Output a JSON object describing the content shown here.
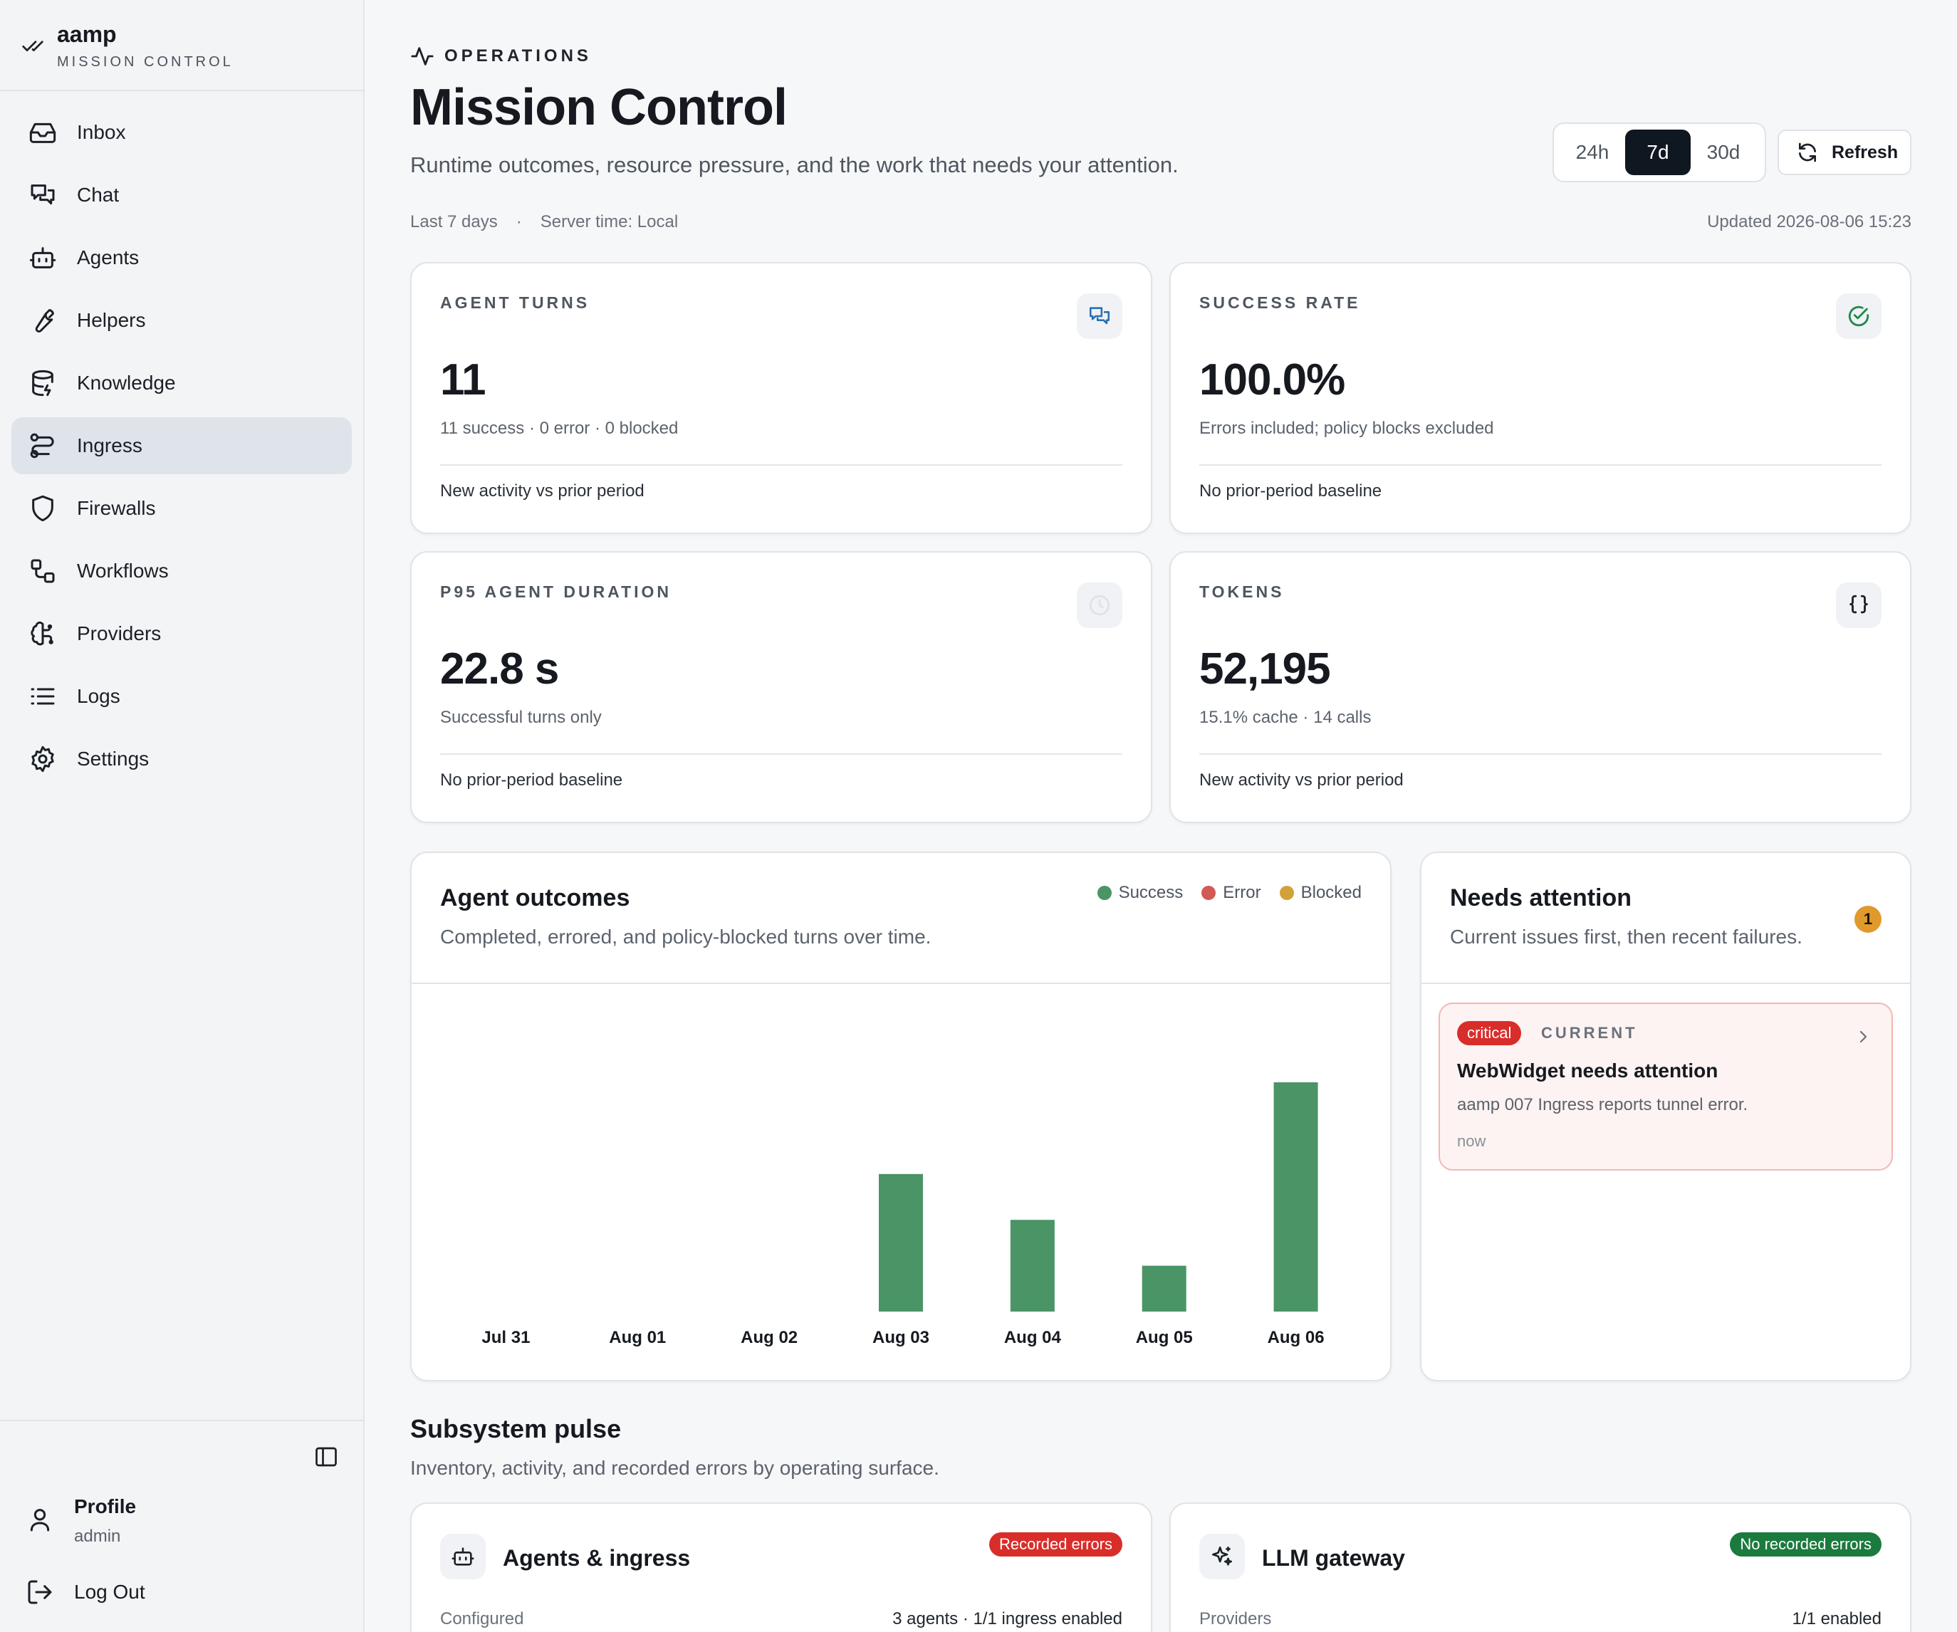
{
  "brand": {
    "name": "aamp",
    "subtitle": "MISSION CONTROL"
  },
  "sidebar": {
    "items": [
      {
        "label": "Inbox",
        "icon": "inbox-icon"
      },
      {
        "label": "Chat",
        "icon": "chat-icon"
      },
      {
        "label": "Agents",
        "icon": "bot-icon"
      },
      {
        "label": "Helpers",
        "icon": "wrench-icon"
      },
      {
        "label": "Knowledge",
        "icon": "database-icon"
      },
      {
        "label": "Ingress",
        "icon": "route-icon",
        "active": true
      },
      {
        "label": "Firewalls",
        "icon": "shield-icon"
      },
      {
        "label": "Workflows",
        "icon": "workflow-icon"
      },
      {
        "label": "Providers",
        "icon": "brain-icon"
      },
      {
        "label": "Logs",
        "icon": "list-icon"
      },
      {
        "label": "Settings",
        "icon": "gear-icon"
      }
    ],
    "profile": {
      "name": "Profile",
      "role": "admin"
    },
    "logout_label": "Log Out"
  },
  "header": {
    "eyebrow": "OPERATIONS",
    "title": "Mission Control",
    "subtitle": "Runtime outcomes, resource pressure, and the work that needs your attention.",
    "range_label": "Last 7 days",
    "server_time": "Server time: Local",
    "updated": "Updated 2026-08-06 15:23",
    "ranges": [
      "24h",
      "7d",
      "30d"
    ],
    "selected_range": "7d",
    "refresh_label": "Refresh"
  },
  "kpis": {
    "turns": {
      "label": "AGENT TURNS",
      "value": "11",
      "detail": "11 success · 0 error · 0 blocked",
      "foot": "New activity vs prior period"
    },
    "success": {
      "label": "SUCCESS RATE",
      "value": "100.0%",
      "detail": "Errors included; policy blocks excluded",
      "foot": "No prior-period baseline"
    },
    "duration": {
      "label": "P95 AGENT DURATION",
      "value": "22.8 s",
      "detail": "Successful turns only",
      "foot": "No prior-period baseline"
    },
    "tokens": {
      "label": "TOKENS",
      "value": "52,195",
      "detail": "15.1% cache · 14 calls",
      "foot": "New activity vs prior period"
    }
  },
  "outcomes": {
    "title": "Agent outcomes",
    "subtitle": "Completed, errored, and policy-blocked turns over time.",
    "legend": [
      {
        "name": "Success",
        "color": "#4a9466"
      },
      {
        "name": "Error",
        "color": "#d25a54"
      },
      {
        "name": "Blocked",
        "color": "#d2a13a"
      }
    ]
  },
  "chart_data": {
    "type": "bar",
    "categories": [
      "Jul 31",
      "Aug 01",
      "Aug 02",
      "Aug 03",
      "Aug 04",
      "Aug 05",
      "Aug 06"
    ],
    "series": [
      {
        "name": "Success",
        "values": [
          0,
          0,
          0,
          3,
          2,
          1,
          5
        ],
        "color": "#4a9466"
      },
      {
        "name": "Error",
        "values": [
          0,
          0,
          0,
          0,
          0,
          0,
          0
        ],
        "color": "#d25a54"
      },
      {
        "name": "Blocked",
        "values": [
          0,
          0,
          0,
          0,
          0,
          0,
          0
        ],
        "color": "#d2a13a"
      }
    ],
    "stacked": true,
    "ylim": [
      0,
      6
    ],
    "grid": false,
    "legend_position": "top-right"
  },
  "attention": {
    "title": "Needs attention",
    "subtitle": "Current issues first, then recent failures.",
    "count": "1",
    "issues": [
      {
        "severity": "critical",
        "state": "CURRENT",
        "title": "WebWidget needs attention",
        "description": "aamp 007 Ingress reports tunnel error.",
        "time": "now"
      }
    ]
  },
  "subsystems": {
    "title": "Subsystem pulse",
    "subtitle": "Inventory, activity, and recorded errors by operating surface.",
    "cards": [
      {
        "title": "Agents & ingress",
        "badge": "Recorded errors",
        "badge_color": "#d92d2a",
        "row_label": "Configured",
        "row_value": "3 agents · 1/1 ingress enabled"
      },
      {
        "title": "LLM gateway",
        "badge": "No recorded errors",
        "badge_color": "#1b7a3e",
        "row_label": "Providers",
        "row_value": "1/1 enabled"
      }
    ]
  }
}
